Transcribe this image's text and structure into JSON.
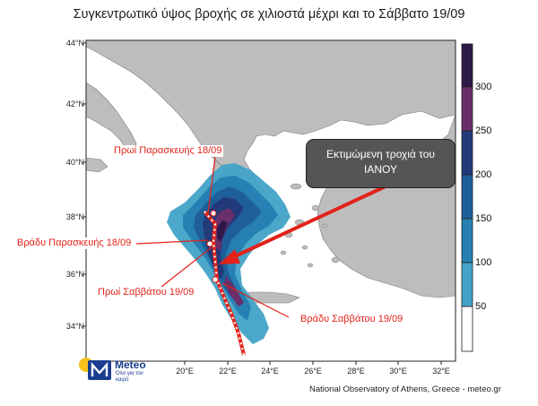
{
  "title": "Συγκεντρωτικό ύψος βροχής σε χιλιοστά μέχρι και το Σάββατο 19/09",
  "lat_labels": [
    "44°N",
    "42°N",
    "40°N",
    "38°N",
    "36°N",
    "34°N"
  ],
  "lon_labels": [
    "20°E",
    "22°E",
    "24°E",
    "26°E",
    "28°E",
    "30°E",
    "32°E"
  ],
  "colorbar": {
    "labels": [
      "300",
      "250",
      "200",
      "150",
      "100",
      "50"
    ],
    "colors": [
      "#2d1a4a",
      "#6a2f6b",
      "#223a7a",
      "#1f5f99",
      "#2780b3",
      "#42a3c7",
      "#ffffff"
    ]
  },
  "annotations": {
    "fri_morning": "Πρωί Παρασκευής 18/09",
    "fri_evening": "Βράδυ Παρασκευής 18/09",
    "sat_morning": "Πρωί Σαββάτου 19/09",
    "sat_evening": "Βράδυ Σαββάτου 19/09"
  },
  "track_box": {
    "line1": "Εκτιμώμενη τροχιά του",
    "line2": "ΙΑΝΟΥ"
  },
  "colors": {
    "land": "#bdbdbd",
    "sea": "#ffffff",
    "annotation": "#e2231a"
  },
  "logo": {
    "name": "Meteo",
    "slogan": "Όλα για τον καιρό"
  },
  "credit": "National Observatory of Athens, Greece - meteo.gr"
}
